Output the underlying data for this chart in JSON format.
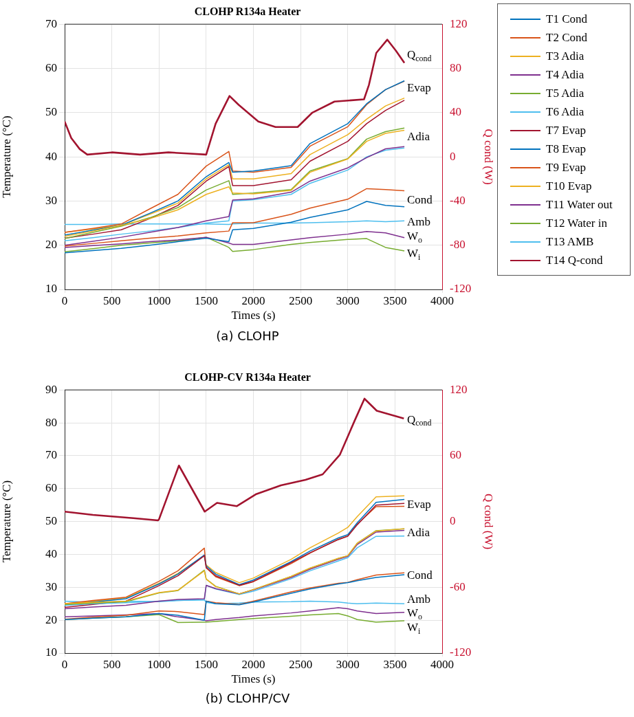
{
  "chart_data": [
    {
      "type": "line",
      "title": "CLOHP R134a Heater",
      "xlabel": "Times (s)",
      "ylabel": "Temperature (°C)",
      "y2label": "Q cond (W)",
      "x": [
        0,
        300,
        600,
        900,
        1200,
        1500,
        1740,
        1780,
        2000,
        2400,
        2600,
        3000,
        3200,
        3400,
        3600
      ],
      "xlim": [
        0,
        4000
      ],
      "xticks": [
        0,
        500,
        1000,
        1500,
        2000,
        2500,
        3000,
        3500,
        4000
      ],
      "ylim": [
        10,
        70
      ],
      "yticks": [
        10,
        20,
        30,
        40,
        50,
        60,
        70
      ],
      "y2lim": [
        -120,
        120
      ],
      "y2ticks": [
        -120,
        -80,
        -40,
        0,
        40,
        80,
        120
      ],
      "grid": true,
      "legend": "right",
      "series": [
        {
          "name": "T1 Cond",
          "color": "#0072bd",
          "values": [
            18.3,
            18.8,
            19.3,
            20,
            20.8,
            21.6,
            20.8,
            23.5,
            23.8,
            25.2,
            26.3,
            28,
            29.9,
            29,
            28.7
          ]
        },
        {
          "name": "T2 Cond",
          "color": "#d95319",
          "values": [
            19.8,
            20.4,
            21,
            21.6,
            22.1,
            22.8,
            23.2,
            25.1,
            25.1,
            27,
            28.4,
            30.4,
            32.8,
            32.6,
            32.3
          ]
        },
        {
          "name": "T3 Adia",
          "color": "#edb120",
          "values": [
            22,
            23.2,
            24.5,
            26,
            28,
            31.5,
            33.2,
            31.8,
            31.6,
            32.4,
            36.5,
            39.5,
            43.5,
            45.3,
            46
          ]
        },
        {
          "name": "T4 Adia",
          "color": "#7e2f8e",
          "values": [
            20,
            20.9,
            21.8,
            22.9,
            24,
            25.5,
            26.5,
            30.2,
            30.5,
            32,
            34.5,
            37.5,
            39.8,
            41.8,
            42.3
          ]
        },
        {
          "name": "T5 Adia",
          "color": "#77ac30",
          "values": [
            21.5,
            22.9,
            24.3,
            26.2,
            28.5,
            32.5,
            34.6,
            31.5,
            31.8,
            32.6,
            36.8,
            39.6,
            44,
            45.7,
            46.5
          ]
        },
        {
          "name": "T6 Adia",
          "color": "#4dbeee",
          "values": [
            21,
            21.7,
            22.5,
            23.2,
            24,
            25,
            25.5,
            30,
            30.3,
            31.5,
            34,
            37,
            40,
            41.5,
            42
          ]
        },
        {
          "name": "T7 Evap",
          "color": "#a2142f",
          "values": [
            21.6,
            22.5,
            23.5,
            26,
            29,
            34.5,
            37.8,
            33.5,
            33.5,
            34.8,
            39,
            43.5,
            47.5,
            50.5,
            52.8
          ]
        },
        {
          "name": "T8 Evap",
          "color": "#0072bd",
          "values": [
            22.3,
            23.4,
            24.5,
            27.2,
            30,
            35.5,
            38.7,
            36.5,
            36.8,
            38,
            43,
            47.5,
            52,
            55.2,
            57.2
          ]
        },
        {
          "name": "T9 Evap",
          "color": "#d95319",
          "values": [
            22.9,
            23.8,
            24.8,
            28.2,
            31.5,
            37.9,
            41.2,
            36.8,
            36.5,
            37.6,
            42.4,
            46.8,
            51.8,
            55.2,
            57.1
          ]
        },
        {
          "name": "T10 Evap",
          "color": "#edb120",
          "values": [
            22.9,
            23.7,
            24.5,
            27,
            29.5,
            35,
            38.2,
            35,
            35,
            36.2,
            40.5,
            45,
            48.5,
            51.5,
            53.3
          ]
        },
        {
          "name": "T11 Water out",
          "color": "#7e2f8e",
          "values": [
            19.5,
            19.9,
            20.3,
            20.8,
            21.2,
            21.8,
            20.5,
            20.2,
            20.2,
            21.2,
            21.7,
            22.5,
            23.1,
            22.8,
            21.7
          ]
        },
        {
          "name": "T12 Water in",
          "color": "#77ac30",
          "values": [
            18.5,
            19.2,
            20,
            20.5,
            21,
            21.8,
            19.5,
            18.6,
            19,
            20.2,
            20.6,
            21.3,
            21.5,
            19.5,
            18.7
          ]
        },
        {
          "name": "T13 AMB",
          "color": "#4dbeee",
          "values": [
            24.7,
            24.7,
            24.8,
            24.8,
            24.8,
            24.8,
            24.7,
            24.8,
            25,
            25,
            25.1,
            25.3,
            25.5,
            25.3,
            25.5
          ]
        },
        {
          "name": "T14 Q-cond",
          "color": "#a2142f",
          "axis": "y2",
          "x": [
            0,
            70,
            160,
            240,
            500,
            800,
            1100,
            1300,
            1500,
            1600,
            1747,
            1844,
            2052,
            2234,
            2469,
            2625,
            2859,
            3172,
            3224,
            3302,
            3419,
            3510,
            3600
          ],
          "values": [
            32,
            17,
            7,
            2,
            4,
            2,
            4,
            3,
            2,
            30,
            55,
            47,
            32,
            27,
            27,
            40,
            50,
            52,
            65,
            94,
            106,
            96,
            85
          ]
        }
      ],
      "annotations": [
        "Q$_{cond}$",
        "Evap",
        "Adia",
        "Cond",
        "Amb",
        "W$_{o}$",
        "W$_{i}$",
        "(a) CLOHP"
      ]
    },
    {
      "type": "line",
      "title": "CLOHP-CV R134a Heater",
      "xlabel": "Times (s)",
      "ylabel": "Temperature (°C)",
      "y2label": "Q cond (W)",
      "x": [
        0,
        300,
        650,
        1000,
        1200,
        1480,
        1500,
        1600,
        1850,
        2000,
        2400,
        2600,
        2900,
        3000,
        3100,
        3300,
        3600
      ],
      "xlim": [
        0,
        4000
      ],
      "xticks": [
        0,
        500,
        1000,
        1500,
        2000,
        2500,
        3000,
        3500,
        4000
      ],
      "ylim": [
        10,
        90
      ],
      "yticks": [
        10,
        20,
        30,
        40,
        50,
        60,
        70,
        80,
        90
      ],
      "y2lim": [
        -120,
        120
      ],
      "y2ticks": [
        -120,
        -60,
        0,
        60,
        120
      ],
      "grid": true,
      "series": [
        {
          "color": "#0072bd",
          "values": [
            20.2,
            20.6,
            21,
            22,
            21.5,
            20,
            25.8,
            25,
            24.7,
            25.5,
            28.2,
            29.5,
            31,
            31.4,
            32,
            33,
            33.8
          ]
        },
        {
          "color": "#d95319",
          "values": [
            20.3,
            20.9,
            21.5,
            22.8,
            22.6,
            21.7,
            25.8,
            25.3,
            24.8,
            25.8,
            28.6,
            29.8,
            31.2,
            31.5,
            32.3,
            33.7,
            34.4
          ]
        },
        {
          "color": "#edb120",
          "values": [
            25,
            25.4,
            25.8,
            28.4,
            29.1,
            35,
            32.5,
            30.2,
            28,
            29.3,
            33.3,
            35.8,
            38.8,
            39.6,
            43.4,
            47.1,
            47.8
          ]
        },
        {
          "color": "#7e2f8e",
          "values": [
            23.5,
            24,
            24.5,
            25.8,
            26.3,
            26.5,
            30.6,
            29.6,
            28,
            29.2,
            33,
            35.5,
            38.5,
            39.4,
            43,
            46.8,
            47.3
          ]
        },
        {
          "color": "#77ac30",
          "values": [
            24.8,
            25.2,
            25.6,
            28.3,
            29,
            35.2,
            32.5,
            30.3,
            28,
            29.3,
            33.3,
            35.8,
            38.8,
            39.6,
            43.4,
            47.2,
            47.8
          ]
        },
        {
          "color": "#4dbeee",
          "values": [
            24.5,
            25,
            25.3,
            25.8,
            26,
            26.2,
            30.6,
            29.5,
            27.8,
            28.8,
            32.6,
            35,
            38,
            39,
            42,
            45.5,
            45.6
          ]
        },
        {
          "color": "#a2142f",
          "values": [
            23.9,
            24.8,
            25.8,
            30.5,
            33.5,
            39.6,
            36,
            33.5,
            30.6,
            31.8,
            37.5,
            40.5,
            44.5,
            45.5,
            49,
            55,
            55.5
          ]
        },
        {
          "color": "#0072bd",
          "values": [
            24.5,
            25.5,
            26.5,
            31,
            34,
            39.8,
            36.5,
            34,
            30.8,
            32.2,
            37.8,
            41,
            45,
            46,
            49.6,
            55.8,
            56.7
          ]
        },
        {
          "color": "#d95319",
          "values": [
            25,
            26,
            27,
            31.8,
            35,
            41.9,
            35.9,
            33.2,
            30.5,
            31.7,
            37.2,
            40.4,
            44.6,
            45.6,
            49.2,
            54.5,
            54.6
          ]
        },
        {
          "color": "#edb120",
          "values": [
            25,
            25.8,
            26.8,
            31.2,
            34.2,
            39.6,
            36.8,
            34.5,
            31.4,
            32.8,
            38.5,
            42,
            46.5,
            48.2,
            51.5,
            57.5,
            57.8
          ]
        },
        {
          "color": "#7e2f8e",
          "values": [
            21,
            21.3,
            21.6,
            22,
            21,
            20,
            19.8,
            20.2,
            20.8,
            21.3,
            22.2,
            22.8,
            23.8,
            23.5,
            22.8,
            22,
            22.4
          ]
        },
        {
          "color": "#77ac30",
          "values": [
            20.2,
            20.6,
            21,
            21.7,
            19.3,
            19.4,
            19.4,
            19.6,
            20.2,
            20.5,
            21.2,
            21.6,
            22,
            21.3,
            20.2,
            19.4,
            19.8
          ]
        },
        {
          "color": "#4dbeee",
          "values": [
            25.8,
            25.4,
            25.8,
            25.6,
            26,
            26.2,
            25.4,
            25,
            25.2,
            25.5,
            25.6,
            25.8,
            25.5,
            25.2,
            25,
            25.2,
            25
          ]
        },
        {
          "color": "#a2142f",
          "axis": "y2",
          "x": [
            0,
            300,
            729,
            990,
            1000,
            1211,
            1484,
            1615,
            1823,
            2031,
            2292,
            2552,
            2734,
            2917,
            3073,
            3177,
            3307,
            3594
          ],
          "values": [
            9,
            6,
            3,
            1,
            2,
            51,
            9,
            17,
            14,
            25,
            33,
            38,
            43,
            61,
            92,
            112,
            101,
            94
          ]
        }
      ],
      "annotations": [
        "Q$_{cond}$",
        "Evap",
        "Adia",
        "Cond",
        "Amb",
        "W$_{o}$",
        "W$_{i}$",
        "(b) CLOHP/CV"
      ]
    }
  ]
}
